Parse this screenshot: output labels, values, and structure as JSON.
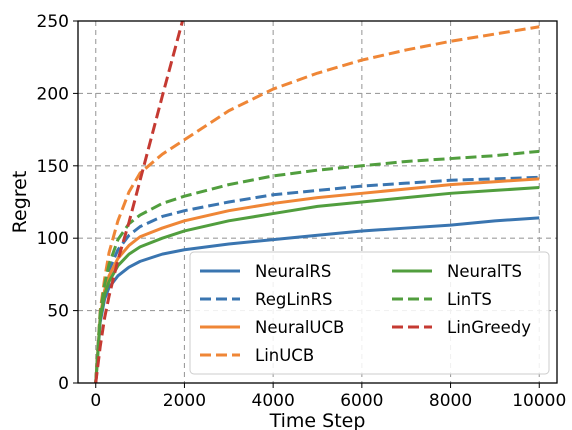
{
  "chart_data": {
    "type": "line",
    "title": "",
    "xlabel": "Time Step",
    "ylabel": "Regret",
    "xlim": [
      -400,
      10400
    ],
    "ylim": [
      0,
      250
    ],
    "xticks": [
      0,
      2000,
      4000,
      6000,
      8000,
      10000
    ],
    "yticks": [
      0,
      50,
      100,
      150,
      200,
      250
    ],
    "grid": true,
    "legend_position": "bottom-right",
    "legend_columns": 2,
    "x": [
      0,
      100,
      200,
      300,
      500,
      750,
      1000,
      1500,
      2000,
      3000,
      4000,
      5000,
      6000,
      7000,
      8000,
      9000,
      10000
    ],
    "series": [
      {
        "name": "NeuralRS",
        "color": "#3a75b0",
        "dash": "solid",
        "values": [
          0,
          42,
          58,
          66,
          74,
          80,
          84,
          89,
          92,
          96,
          99,
          102,
          105,
          107,
          109,
          112,
          114
        ]
      },
      {
        "name": "RegLinRS",
        "color": "#3a75b0",
        "dash": "dashed",
        "values": [
          0,
          47,
          66,
          78,
          92,
          102,
          108,
          115,
          119,
          125,
          130,
          133,
          136,
          138,
          140,
          141,
          142
        ]
      },
      {
        "name": "NeuralUCB",
        "color": "#ef8636",
        "dash": "solid",
        "values": [
          0,
          46,
          64,
          74,
          86,
          95,
          101,
          107,
          112,
          119,
          124,
          128,
          131,
          134,
          137,
          139,
          141
        ]
      },
      {
        "name": "LinUCB",
        "color": "#ef8636",
        "dash": "dashed",
        "values": [
          0,
          50,
          72,
          90,
          112,
          132,
          145,
          158,
          168,
          188,
          203,
          214,
          223,
          230,
          236,
          241,
          246
        ]
      },
      {
        "name": "NeuralTS",
        "color": "#519e3e",
        "dash": "solid",
        "values": [
          0,
          44,
          61,
          70,
          81,
          89,
          94,
          100,
          105,
          112,
          117,
          122,
          125,
          128,
          131,
          133,
          135
        ]
      },
      {
        "name": "LinTS",
        "color": "#519e3e",
        "dash": "dashed",
        "values": [
          0,
          48,
          68,
          82,
          99,
          110,
          116,
          124,
          129,
          137,
          143,
          147,
          150,
          153,
          155,
          157,
          160
        ]
      },
      {
        "name": "LinGreedy",
        "color": "#c53a32",
        "dash": "dashed",
        "values": [
          0,
          25,
          45,
          60,
          85,
          111,
          140,
          198,
          255,
          null,
          null,
          null,
          null,
          null,
          null,
          null,
          null
        ]
      }
    ]
  }
}
